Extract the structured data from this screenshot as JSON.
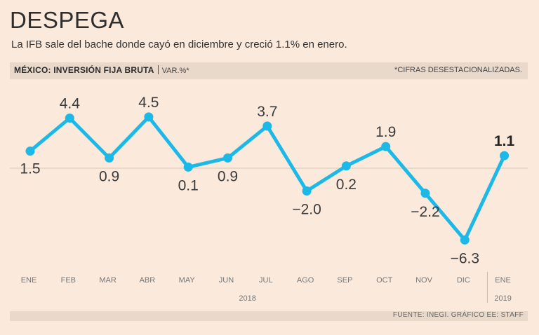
{
  "header": {
    "title": "DESPEGA",
    "subtitle": "La IFB sale del bache donde cayó en diciembre y creció 1.1% en enero."
  },
  "band": {
    "label": "MÉXICO: INVERSIÓN FIJA BRUTA",
    "unit": "VAR.%*",
    "note": "*CIFRAS DESESTACIONALIZADAS."
  },
  "footer": {
    "source": "FUENTE: INEGI. GRÁFICO EE: STAFF"
  },
  "colors": {
    "line": "#1cb9e8",
    "background": "#fbe9dc",
    "band": "#e9d9cb"
  },
  "chart_data": {
    "type": "line",
    "title": "MÉXICO: INVERSIÓN FIJA BRUTA",
    "ylabel": "VAR.%*",
    "categories": [
      "ENE",
      "FEB",
      "MAR",
      "ABR",
      "MAY",
      "JUN",
      "JUL",
      "AGO",
      "SEP",
      "OCT",
      "NOV",
      "DIC",
      "ENE"
    ],
    "values": [
      1.5,
      4.4,
      0.9,
      4.5,
      0.1,
      0.9,
      3.7,
      -2.0,
      0.2,
      1.9,
      -2.2,
      -6.3,
      1.1
    ],
    "labels": [
      "1.5",
      "4.4",
      "0.9",
      "4.5",
      "0.1",
      "0.9",
      "3.7",
      "−2.0",
      "0.2",
      "1.9",
      "−2.2",
      "−6.3",
      "1.1"
    ],
    "years": [
      {
        "label": "2018",
        "start": 0,
        "end": 11
      },
      {
        "label": "2019",
        "start": 12,
        "end": 12
      }
    ],
    "ylim": [
      -6.5,
      5.0
    ],
    "reference_line": 0
  }
}
